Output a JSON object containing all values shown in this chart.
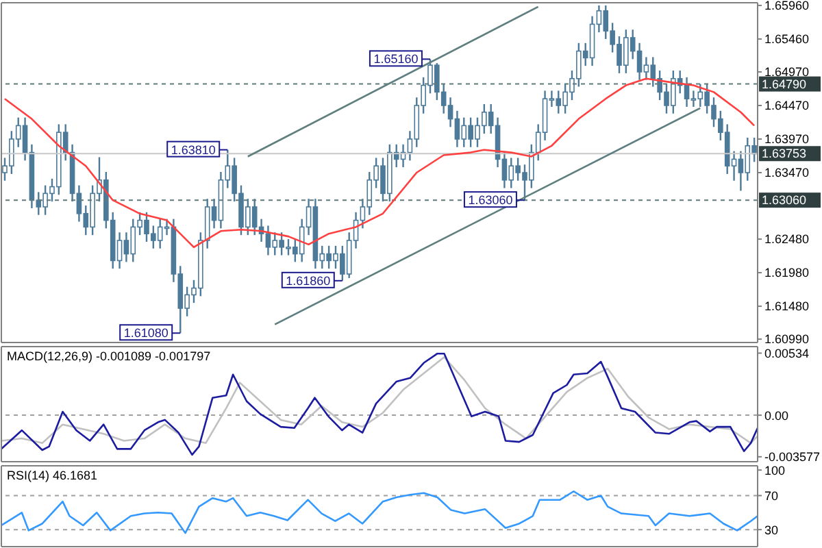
{
  "chart_data": [
    {
      "type": "candlestick",
      "color": "#4d7a99",
      "categories": [
        null,
        null,
        null,
        null,
        null,
        null,
        null,
        null,
        null,
        null,
        null,
        null,
        null,
        null,
        null,
        null,
        null,
        null,
        null,
        null,
        null,
        null,
        null,
        null,
        null,
        null,
        null,
        null,
        null,
        null,
        null,
        null,
        null,
        null,
        null,
        null,
        null,
        null,
        null,
        null,
        null,
        null,
        null,
        null,
        null,
        null,
        null,
        null,
        null,
        null,
        null,
        null,
        null,
        null,
        null,
        null,
        null,
        null,
        null,
        null,
        null,
        null,
        null,
        null,
        null,
        null,
        null,
        null,
        null,
        null,
        null,
        null,
        null,
        null,
        null,
        null,
        null,
        null,
        null,
        null,
        null,
        null,
        null,
        null,
        null,
        null,
        null,
        null,
        null,
        null,
        null,
        null,
        null,
        null,
        null,
        null,
        null,
        null,
        null,
        null,
        null,
        null,
        null,
        null,
        null,
        null,
        null,
        null,
        null,
        null,
        null,
        null
      ],
      "ohlc": [
        [
          1.6347,
          1.6369,
          1.6335,
          1.6357
        ],
        [
          1.6357,
          1.6409,
          1.6345,
          1.6397
        ],
        [
          1.6397,
          1.6429,
          1.6385,
          1.6417
        ],
        [
          1.6417,
          1.6429,
          1.6365,
          1.6377
        ],
        [
          1.6377,
          1.6389,
          1.6294,
          1.6306
        ],
        [
          1.6306,
          1.6318,
          1.6284,
          1.6296
        ],
        [
          1.6296,
          1.6328,
          1.6284,
          1.6316
        ],
        [
          1.6316,
          1.6338,
          1.6304,
          1.6326
        ],
        [
          1.6326,
          1.6419,
          1.6314,
          1.6407
        ],
        [
          1.6407,
          1.6419,
          1.6365,
          1.6377
        ],
        [
          1.6377,
          1.6389,
          1.6304,
          1.6316
        ],
        [
          1.6316,
          1.6328,
          1.6274,
          1.6286
        ],
        [
          1.6286,
          1.6298,
          1.6254,
          1.6266
        ],
        [
          1.6266,
          1.6328,
          1.6254,
          1.6316
        ],
        [
          1.6316,
          1.637,
          1.6304,
          1.6336
        ],
        [
          1.6336,
          1.6348,
          1.6264,
          1.6276
        ],
        [
          1.6276,
          1.6288,
          1.6204,
          1.6216
        ],
        [
          1.6216,
          1.6258,
          1.6204,
          1.6246
        ],
        [
          1.6246,
          1.6258,
          1.6214,
          1.6226
        ],
        [
          1.6226,
          1.6278,
          1.6214,
          1.6266
        ],
        [
          1.6266,
          1.6288,
          1.6254,
          1.6276
        ],
        [
          1.6276,
          1.6288,
          1.6244,
          1.6256
        ],
        [
          1.6256,
          1.6268,
          1.6234,
          1.6246
        ],
        [
          1.6246,
          1.6278,
          1.6234,
          1.6266
        ],
        [
          1.6266,
          1.6278,
          1.6254,
          1.6266
        ],
        [
          1.6266,
          1.6278,
          1.6184,
          1.6196
        ],
        [
          1.6196,
          1.6208,
          1.6108,
          1.6145
        ],
        [
          1.6145,
          1.6177,
          1.6133,
          1.6165
        ],
        [
          1.6165,
          1.6187,
          1.6153,
          1.6175
        ],
        [
          1.6175,
          1.6258,
          1.6163,
          1.6246
        ],
        [
          1.6246,
          1.6308,
          1.6234,
          1.6296
        ],
        [
          1.6296,
          1.6308,
          1.6264,
          1.6276
        ],
        [
          1.6276,
          1.6348,
          1.6264,
          1.6336
        ],
        [
          1.6336,
          1.6381,
          1.6324,
          1.6357
        ],
        [
          1.6357,
          1.6369,
          1.6304,
          1.6316
        ],
        [
          1.6316,
          1.6328,
          1.6254,
          1.6266
        ],
        [
          1.6266,
          1.6308,
          1.6254,
          1.6296
        ],
        [
          1.6296,
          1.6308,
          1.6254,
          1.6266
        ],
        [
          1.6266,
          1.6278,
          1.6244,
          1.6256
        ],
        [
          1.6256,
          1.6268,
          1.6224,
          1.6236
        ],
        [
          1.6236,
          1.6258,
          1.6224,
          1.6246
        ],
        [
          1.6246,
          1.6258,
          1.6224,
          1.6236
        ],
        [
          1.6236,
          1.6248,
          1.6224,
          1.6236
        ],
        [
          1.6236,
          1.6248,
          1.6214,
          1.6226
        ],
        [
          1.6226,
          1.6278,
          1.6214,
          1.6266
        ],
        [
          1.6266,
          1.6308,
          1.6254,
          1.6296
        ],
        [
          1.6296,
          1.6308,
          1.6204,
          1.6216
        ],
        [
          1.6216,
          1.6238,
          1.6204,
          1.6226
        ],
        [
          1.6226,
          1.6238,
          1.6204,
          1.6216
        ],
        [
          1.6216,
          1.6238,
          1.6204,
          1.6226
        ],
        [
          1.6226,
          1.6238,
          1.6186,
          1.6196
        ],
        [
          1.6196,
          1.6258,
          1.619,
          1.6246
        ],
        [
          1.6246,
          1.6288,
          1.6234,
          1.6276
        ],
        [
          1.6276,
          1.6308,
          1.6264,
          1.6296
        ],
        [
          1.6296,
          1.6348,
          1.6284,
          1.6336
        ],
        [
          1.6336,
          1.6369,
          1.6324,
          1.6357
        ],
        [
          1.6357,
          1.6369,
          1.6304,
          1.6316
        ],
        [
          1.6316,
          1.6389,
          1.6304,
          1.6377
        ],
        [
          1.6377,
          1.6389,
          1.6355,
          1.6367
        ],
        [
          1.6367,
          1.6389,
          1.6355,
          1.6377
        ],
        [
          1.6377,
          1.6409,
          1.6365,
          1.6397
        ],
        [
          1.6397,
          1.6459,
          1.6385,
          1.6447
        ],
        [
          1.6447,
          1.6489,
          1.6435,
          1.6477
        ],
        [
          1.6477,
          1.6516,
          1.6465,
          1.6507
        ],
        [
          1.6507,
          1.651,
          1.6455,
          1.6467
        ],
        [
          1.6467,
          1.6479,
          1.6435,
          1.6447
        ],
        [
          1.6447,
          1.6459,
          1.6415,
          1.6427
        ],
        [
          1.6427,
          1.6439,
          1.6385,
          1.6397
        ],
        [
          1.6397,
          1.6429,
          1.6385,
          1.6417
        ],
        [
          1.6417,
          1.6429,
          1.6385,
          1.6397
        ],
        [
          1.6397,
          1.6429,
          1.6385,
          1.6417
        ],
        [
          1.6417,
          1.6449,
          1.6405,
          1.6437
        ],
        [
          1.6437,
          1.6449,
          1.6405,
          1.6417
        ],
        [
          1.6417,
          1.6429,
          1.6355,
          1.6367
        ],
        [
          1.6367,
          1.6379,
          1.6324,
          1.6336
        ],
        [
          1.6336,
          1.6369,
          1.6324,
          1.6357
        ],
        [
          1.6357,
          1.6369,
          1.6335,
          1.6347
        ],
        [
          1.6347,
          1.6359,
          1.6306,
          1.6336
        ],
        [
          1.6336,
          1.6389,
          1.6324,
          1.6377
        ],
        [
          1.6377,
          1.6419,
          1.6365,
          1.6407
        ],
        [
          1.6407,
          1.6469,
          1.6395,
          1.6457
        ],
        [
          1.6457,
          1.6469,
          1.6445,
          1.6457
        ],
        [
          1.6457,
          1.6469,
          1.6435,
          1.6447
        ],
        [
          1.6447,
          1.6479,
          1.6435,
          1.6467
        ],
        [
          1.6467,
          1.6499,
          1.6455,
          1.6487
        ],
        [
          1.6487,
          1.654,
          1.6475,
          1.6528
        ],
        [
          1.6528,
          1.654,
          1.6506,
          1.6518
        ],
        [
          1.6518,
          1.658,
          1.6506,
          1.6568
        ],
        [
          1.6568,
          1.6596,
          1.6556,
          1.6588
        ],
        [
          1.6588,
          1.6596,
          1.6546,
          1.6558
        ],
        [
          1.6558,
          1.657,
          1.6526,
          1.6538
        ],
        [
          1.6538,
          1.655,
          1.6495,
          1.6507
        ],
        [
          1.6507,
          1.656,
          1.6495,
          1.6548
        ],
        [
          1.6548,
          1.656,
          1.6516,
          1.6528
        ],
        [
          1.6528,
          1.654,
          1.6485,
          1.6497
        ],
        [
          1.6497,
          1.6519,
          1.6485,
          1.6507
        ],
        [
          1.6507,
          1.6519,
          1.6475,
          1.6487
        ],
        [
          1.6487,
          1.6499,
          1.6455,
          1.6467
        ],
        [
          1.6467,
          1.6479,
          1.6435,
          1.6447
        ],
        [
          1.6447,
          1.6499,
          1.6435,
          1.6487
        ],
        [
          1.6487,
          1.6499,
          1.6465,
          1.6477
        ],
        [
          1.6477,
          1.6489,
          1.6445,
          1.6457
        ],
        [
          1.6457,
          1.6469,
          1.6445,
          1.6457
        ],
        [
          1.6457,
          1.6479,
          1.6445,
          1.6467
        ],
        [
          1.6467,
          1.6479,
          1.6435,
          1.6447
        ],
        [
          1.6447,
          1.6459,
          1.6415,
          1.6427
        ],
        [
          1.6427,
          1.6439,
          1.6395,
          1.6407
        ],
        [
          1.6407,
          1.6419,
          1.6345,
          1.6357
        ],
        [
          1.6357,
          1.6379,
          1.6335,
          1.6367
        ],
        [
          1.6367,
          1.6379,
          1.632,
          1.6347
        ],
        [
          1.6347,
          1.6399,
          1.6335,
          1.6387
        ],
        [
          1.6387,
          1.6399,
          1.6363,
          1.6375
        ]
      ],
      "series": [
        {
          "type": "line",
          "color": "#ff4040",
          "values": [
            1.6457,
            null,
            null,
            null,
            1.6427,
            null,
            null,
            null,
            1.6387,
            null,
            null,
            null,
            1.6357,
            null,
            null,
            null,
            1.6306,
            null,
            null,
            null,
            1.6286,
            null,
            null,
            null,
            1.6276,
            null,
            null,
            null,
            1.6236,
            null,
            null,
            null,
            1.626,
            null,
            null,
            1.6262,
            null,
            null,
            1.626,
            null,
            null,
            null,
            1.6252,
            null,
            null,
            1.624,
            null,
            null,
            1.6256,
            null,
            null,
            null,
            1.6266,
            null,
            null,
            null,
            1.6286,
            null,
            null,
            null,
            null,
            1.6347,
            null,
            null,
            null,
            1.6373,
            null,
            null,
            null,
            1.6377,
            null,
            1.6381,
            null,
            null,
            null,
            1.6377,
            null,
            null,
            1.6371,
            null,
            null,
            1.6387,
            null,
            null,
            null,
            1.6427,
            null,
            null,
            null,
            1.6457,
            null,
            null,
            1.6477,
            null,
            null,
            1.6487,
            null,
            null,
            null,
            1.6481,
            null,
            null,
            1.6477,
            null,
            null,
            1.6467,
            null,
            null,
            null,
            1.6437,
            null,
            1.6417
          ]
        },
        {
          "type": "line",
          "color": "#5f7f7f",
          "values": [
            null,
            null,
            null,
            null,
            null,
            null,
            null,
            null,
            null,
            null,
            null,
            null,
            null,
            null,
            null,
            null,
            null,
            null,
            null,
            null,
            null,
            null,
            null,
            null,
            null,
            null,
            null,
            null,
            null,
            null,
            null,
            null,
            null,
            null,
            null,
            null,
            1.6371,
            null,
            null,
            null,
            null,
            null,
            null,
            null,
            null,
            null,
            null,
            null,
            null,
            null,
            null,
            null,
            null,
            null,
            null,
            null,
            null,
            null,
            null,
            null,
            null,
            null,
            null,
            null,
            null,
            null,
            null,
            null,
            null,
            null,
            null,
            null,
            null,
            null,
            null,
            null,
            null,
            null,
            null,
            1.6594,
            null,
            null,
            null,
            null,
            null,
            null,
            null,
            null,
            null,
            null,
            null,
            null,
            null,
            null,
            null,
            null,
            null,
            null,
            null,
            null,
            null,
            null,
            null,
            null,
            null,
            null,
            null,
            null,
            null,
            null,
            null,
            null
          ]
        },
        {
          "type": "line",
          "color": "#5f7f7f",
          "values": [
            null,
            null,
            null,
            null,
            null,
            null,
            null,
            null,
            null,
            null,
            null,
            null,
            null,
            null,
            null,
            null,
            null,
            null,
            null,
            null,
            null,
            null,
            null,
            null,
            null,
            null,
            null,
            null,
            null,
            null,
            null,
            null,
            null,
            null,
            null,
            null,
            null,
            null,
            null,
            null,
            1.6121,
            null,
            null,
            null,
            null,
            null,
            null,
            null,
            null,
            null,
            null,
            null,
            null,
            null,
            null,
            null,
            null,
            null,
            null,
            null,
            null,
            null,
            null,
            null,
            null,
            null,
            null,
            null,
            null,
            null,
            null,
            null,
            null,
            null,
            null,
            null,
            null,
            null,
            null,
            null,
            null,
            null,
            null,
            null,
            null,
            null,
            null,
            null,
            null,
            null,
            null,
            null,
            null,
            null,
            null,
            null,
            null,
            null,
            null,
            null,
            null,
            null,
            null,
            1.6443,
            null,
            null,
            null,
            null,
            null,
            null,
            null,
            null
          ]
        }
      ],
      "ylim": [
        1.6094,
        1.66
      ],
      "yticks": [
        {
          "value": 1.6099,
          "label": "1.60990"
        },
        {
          "value": 1.6148,
          "label": "1.61480"
        },
        {
          "value": 1.6198,
          "label": "1.61980"
        },
        {
          "value": 1.6248,
          "label": "1.62480"
        },
        {
          "value": 1.6347,
          "label": "1.63470"
        },
        {
          "value": 1.6397,
          "label": "1.63970"
        },
        {
          "value": 1.6447,
          "label": "1.64470"
        },
        {
          "value": 1.6497,
          "label": "1.64970"
        },
        {
          "value": 1.6546,
          "label": "1.65460"
        },
        {
          "value": 1.6596,
          "label": "1.65960"
        }
      ],
      "tick_labels": "y",
      "ref_lines": [
        {
          "axis": "y",
          "value": 1.6479,
          "label": "1.64790",
          "color": "#5f7a7a",
          "line_style": "dashed"
        },
        {
          "axis": "y",
          "value": 1.63753,
          "label": "1.63753",
          "color": "#c8c8c8",
          "line_style": "solid"
        },
        {
          "axis": "y",
          "value": 1.6306,
          "label": "1.63060",
          "color": "#5f7a7a",
          "line_style": "dashed"
        }
      ],
      "annotations": [
        {
          "text": "1.63810",
          "y": 1.6381
        },
        "1.61080",
        "1.65160",
        "1.61860",
        {
          "text": "1.63060",
          "y": 1.6306
        }
      ]
    },
    {
      "type": "line",
      "title": "MACD(12,26,9) -0.001089 -0.001797",
      "categories": [
        null,
        null,
        null,
        null,
        null,
        null,
        null,
        null,
        null,
        null,
        null,
        null,
        null,
        null,
        null,
        null,
        null,
        null,
        null,
        null,
        null,
        null,
        null,
        null,
        null,
        null,
        null,
        null,
        null,
        null,
        null,
        null,
        null,
        null,
        null,
        null,
        null,
        null,
        null,
        null,
        null,
        null,
        null,
        null,
        null,
        null,
        null,
        null,
        null,
        null,
        null,
        null,
        null,
        null,
        null,
        null,
        null,
        null,
        null,
        null,
        null,
        null,
        null,
        null,
        null,
        null,
        null,
        null,
        null,
        null,
        null,
        null,
        null,
        null,
        null,
        null,
        null,
        null,
        null,
        null,
        null,
        null,
        null,
        null,
        null,
        null,
        null,
        null,
        null,
        null,
        null,
        null,
        null,
        null,
        null,
        null,
        null,
        null,
        null,
        null,
        null,
        null,
        null,
        null,
        null,
        null,
        null,
        null,
        null,
        null,
        null,
        null
      ],
      "series": [
        {
          "color": "#c0c0c0",
          "values": [
            -0.0022,
            null,
            null,
            -0.002,
            null,
            null,
            -0.0024,
            null,
            null,
            -0.0008,
            null,
            null,
            -0.0012,
            null,
            null,
            -0.0016,
            null,
            null,
            -0.0022,
            null,
            null,
            -0.002,
            null,
            null,
            -0.0008,
            null,
            null,
            -0.002,
            null,
            null,
            -0.0024,
            null,
            null,
            0.0006,
            null,
            0.0028,
            null,
            null,
            0.0012,
            null,
            null,
            -0.0004,
            null,
            null,
            -0.0008,
            null,
            null,
            0.0008,
            null,
            null,
            -0.0006,
            null,
            null,
            -0.001,
            null,
            null,
            0.0002,
            null,
            null,
            0.0022,
            null,
            null,
            0.0036,
            null,
            null,
            0.005,
            null,
            null,
            0.003,
            null,
            null,
            0.0006,
            null,
            null,
            -0.0008,
            null,
            null,
            -0.002,
            null,
            null,
            0.0,
            null,
            null,
            0.002,
            null,
            null,
            0.0032,
            null,
            null,
            0.004,
            null,
            null,
            0.0016,
            null,
            null,
            -0.0002,
            null,
            null,
            -0.0012,
            null,
            null,
            -0.0008,
            null,
            null,
            -0.001,
            null,
            null,
            -0.0012,
            null,
            null,
            -0.0024,
            -0.0018
          ]
        },
        {
          "color": "#1c1ca0",
          "values": [
            -0.0029,
            null,
            null,
            -0.0013,
            null,
            null,
            -0.003,
            -0.0027,
            null,
            0.0003,
            null,
            -0.0013,
            null,
            -0.0022,
            null,
            -0.0008,
            null,
            -0.0029,
            null,
            -0.0029,
            null,
            -0.0013,
            null,
            -0.0006,
            -0.0004,
            null,
            -0.0015,
            null,
            -0.0034,
            -0.0027,
            null,
            0.0015,
            null,
            0.0017,
            0.0035,
            null,
            0.0012,
            null,
            0.0001,
            null,
            null,
            -0.001,
            null,
            -0.0011,
            null,
            0.0006,
            0.0015,
            null,
            -0.0001,
            null,
            -0.0013,
            -0.0008,
            null,
            -0.0015,
            null,
            0.001,
            null,
            null,
            0.0029,
            null,
            0.0032,
            null,
            0.0045,
            null,
            0.0053,
            0.0053,
            null,
            0.0026,
            null,
            -0.0001,
            null,
            0.0003,
            null,
            -0.0001,
            -0.0022,
            null,
            -0.0023,
            null,
            -0.0017,
            null,
            null,
            0.0019,
            null,
            0.0026,
            0.0035,
            null,
            0.0036,
            null,
            0.0046,
            0.0033,
            null,
            0.0006,
            null,
            0.0003,
            null,
            null,
            -0.0015,
            null,
            -0.0016,
            null,
            null,
            -0.0006,
            -0.0005,
            null,
            -0.0014,
            -0.001,
            null,
            -0.001,
            null,
            -0.0031,
            -0.0024,
            -0.0011
          ]
        }
      ],
      "ylim": [
        -0.004,
        0.0059
      ],
      "yticks": [
        -0.003577,
        {
          "value": 0,
          "label": "0.00"
        },
        0.00534
      ],
      "tick_labels": "y",
      "ref_lines": [
        {
          "axis": "y",
          "value": 0,
          "color": "#a0a0a0",
          "line_style": "dashed"
        }
      ]
    },
    {
      "type": "line",
      "title": "RSI(14) 46.1681",
      "categories": [
        null,
        null,
        null,
        null,
        null,
        null,
        null,
        null,
        null,
        null,
        null,
        null,
        null,
        null,
        null,
        null,
        null,
        null,
        null,
        null,
        null,
        null,
        null,
        null,
        null,
        null,
        null,
        null,
        null,
        null,
        null,
        null,
        null,
        null,
        null,
        null,
        null,
        null,
        null,
        null,
        null,
        null,
        null,
        null,
        null,
        null,
        null,
        null,
        null,
        null,
        null,
        null,
        null,
        null,
        null,
        null,
        null,
        null,
        null,
        null,
        null,
        null,
        null,
        null,
        null,
        null,
        null,
        null,
        null,
        null,
        null,
        null,
        null,
        null,
        null,
        null,
        null,
        null,
        null,
        null,
        null,
        null,
        null,
        null,
        null,
        null,
        null,
        null,
        null,
        null,
        null,
        null,
        null,
        null,
        null,
        null,
        null,
        null,
        null,
        null,
        null,
        null,
        null,
        null,
        null,
        null,
        null,
        null,
        null,
        null,
        null,
        null
      ],
      "series": [
        {
          "color": "#3399ff",
          "values": [
            35,
            null,
            null,
            50,
            29,
            null,
            37,
            null,
            null,
            63,
            46,
            null,
            35,
            null,
            50,
            null,
            29,
            null,
            null,
            46,
            null,
            49,
            null,
            50,
            null,
            49,
            null,
            26,
            null,
            57,
            null,
            67,
            null,
            63,
            67,
            null,
            46,
            null,
            50,
            null,
            46,
            null,
            41,
            null,
            null,
            65,
            null,
            49,
            null,
            40,
            null,
            49,
            null,
            37,
            null,
            null,
            63,
            null,
            68,
            null,
            71,
            null,
            73,
            null,
            68,
            null,
            53,
            null,
            49,
            null,
            null,
            54,
            null,
            null,
            32,
            null,
            37,
            null,
            46,
            65,
            null,
            null,
            65,
            null,
            75,
            null,
            65,
            null,
            70,
            57,
            null,
            49,
            null,
            null,
            null,
            46,
            35,
            null,
            49,
            null,
            null,
            46,
            null,
            null,
            49,
            null,
            37,
            null,
            29,
            null,
            40,
            46
          ]
        }
      ],
      "ylim": [
        10,
        105
      ],
      "yticks": [
        30,
        70,
        100
      ],
      "tick_labels": "y",
      "ref_lines": [
        {
          "axis": "y",
          "value": 70,
          "color": "#a0a0a0",
          "line_style": "dashed"
        },
        {
          "axis": "y",
          "value": 30,
          "color": "#a0a0a0",
          "line_style": "dashed"
        }
      ]
    }
  ]
}
